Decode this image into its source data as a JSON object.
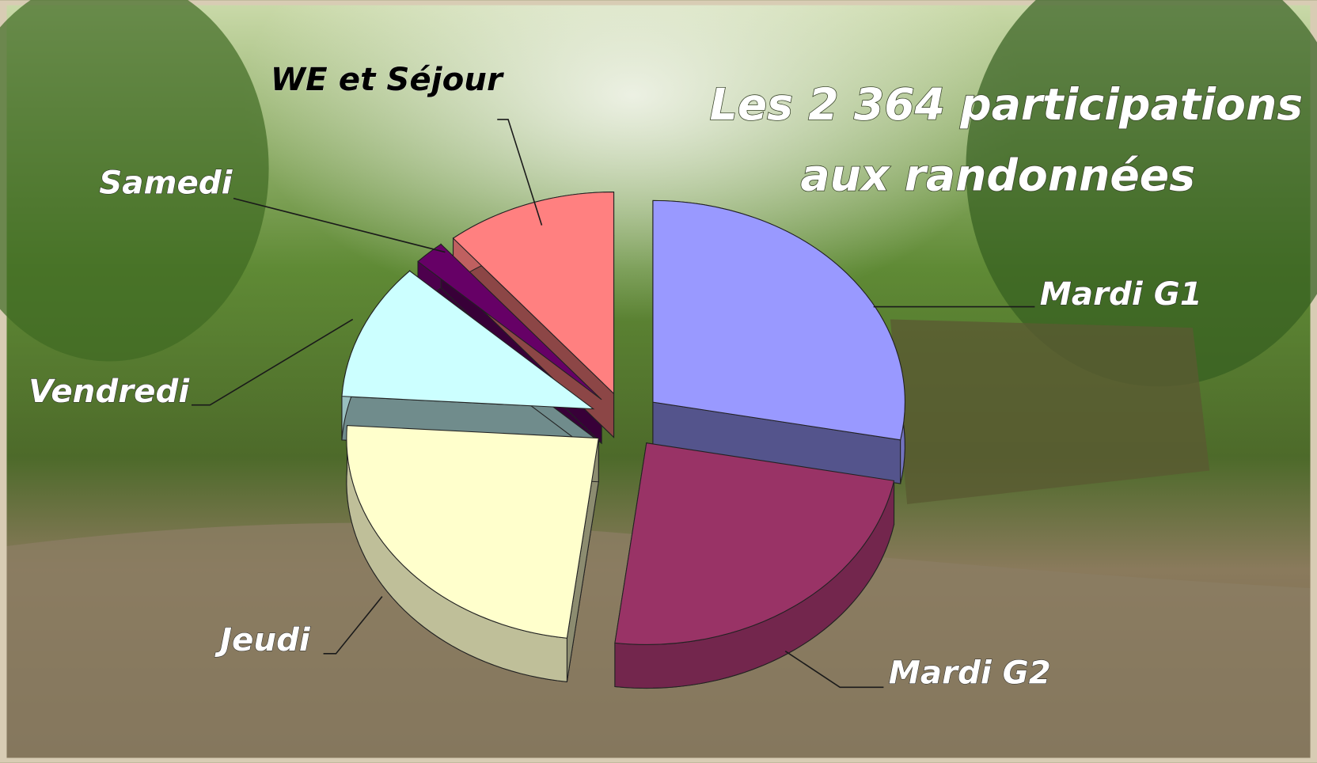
{
  "chart_data": {
    "type": "pie",
    "title": [
      "Les 2 364 participations",
      "aux randonnées"
    ],
    "categories": [
      "Mardi G1",
      "Mardi G2",
      "Jeudi",
      "Vendredi",
      "Samedi",
      "WE et Séjour"
    ],
    "values": [
      28,
      24,
      24,
      11,
      2,
      11
    ],
    "colors": [
      "#9999ff",
      "#993366",
      "#ffffcc",
      "#ccffff",
      "#660066",
      "#ff8080"
    ],
    "explode": true,
    "three_d": true
  }
}
